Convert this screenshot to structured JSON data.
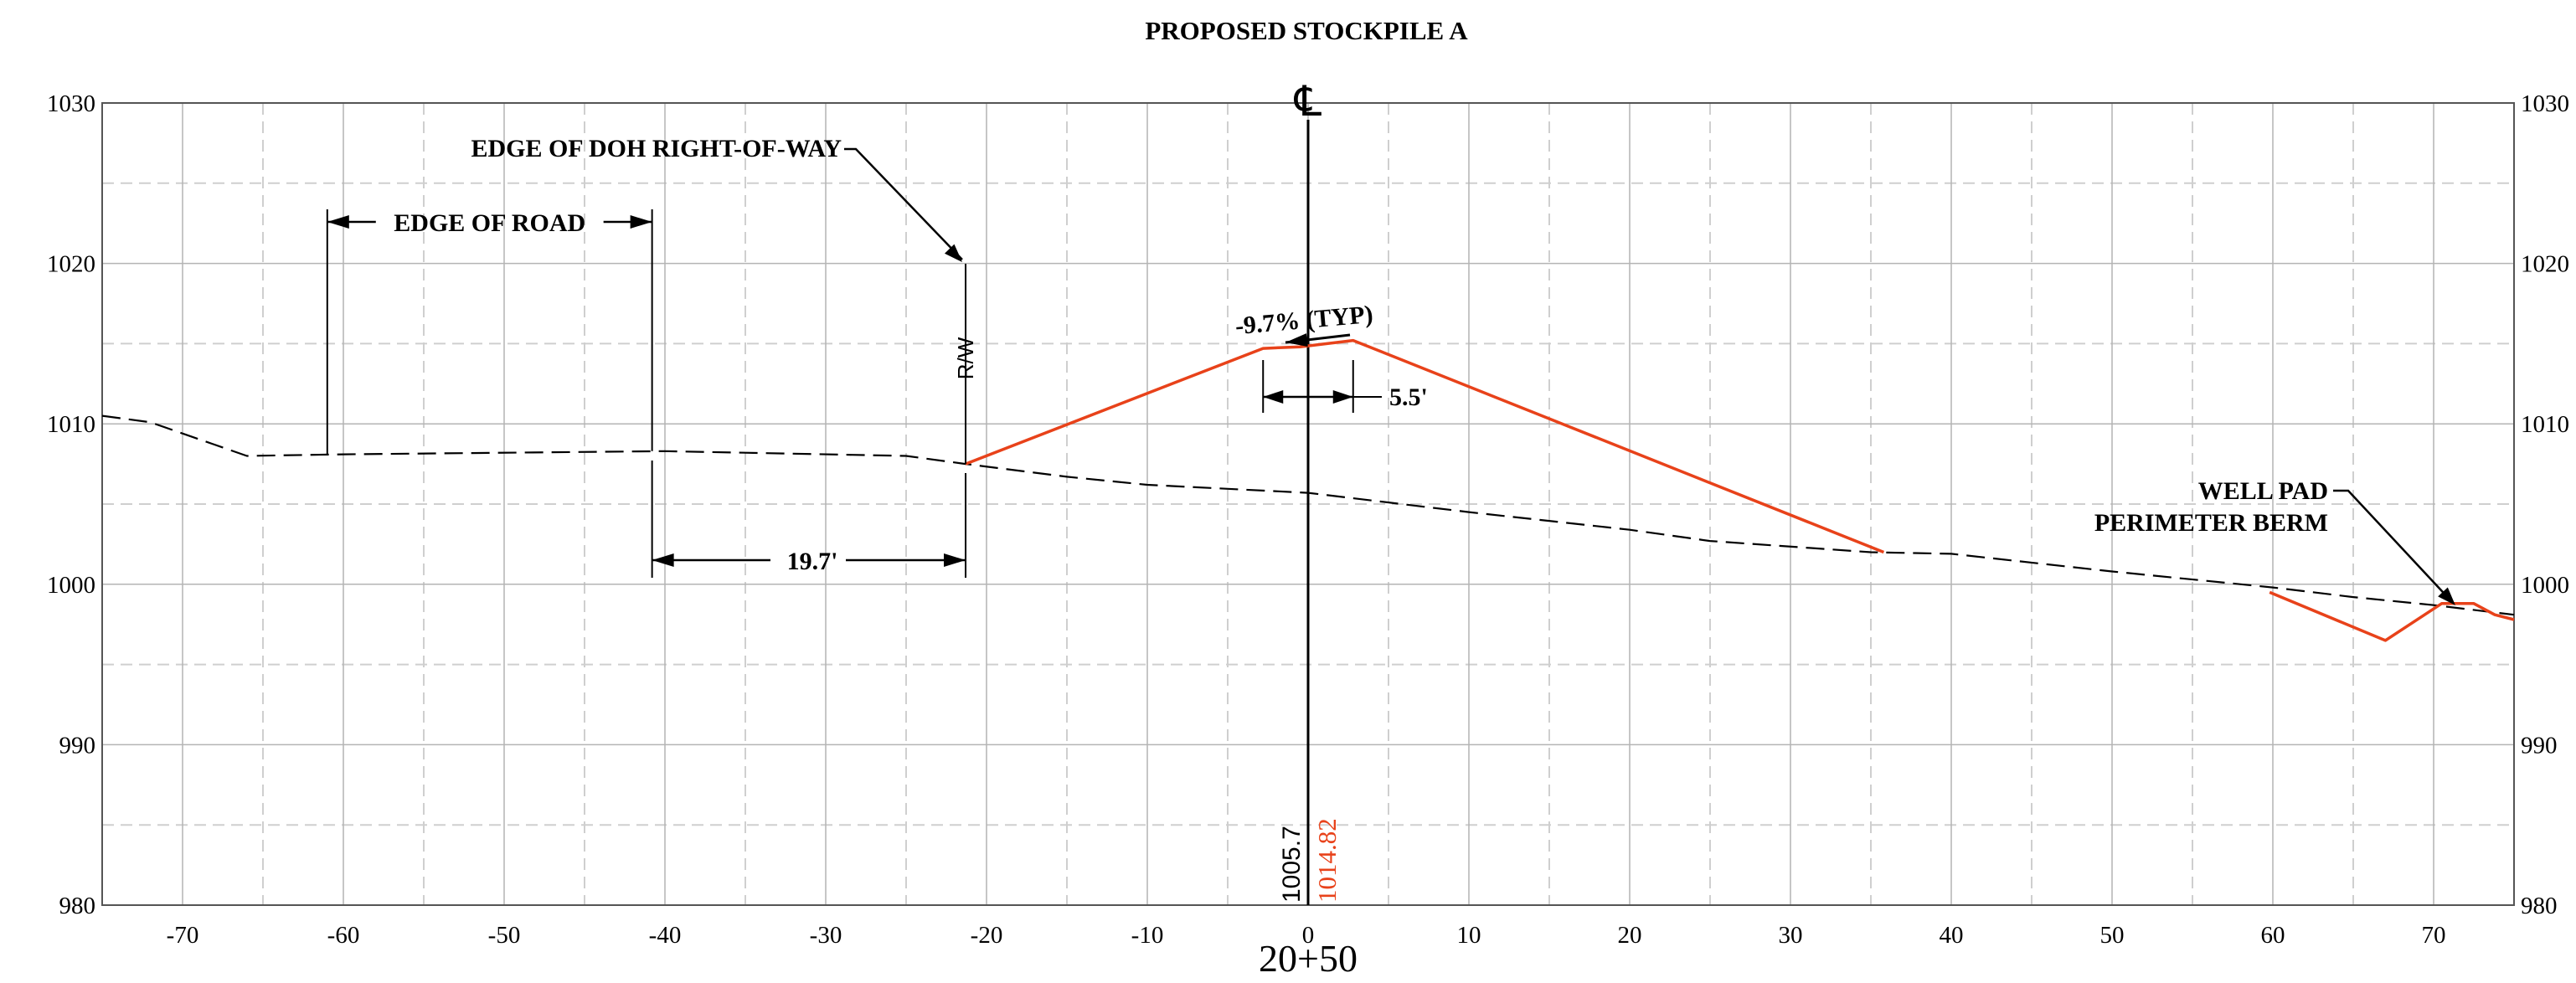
{
  "chart_data": {
    "type": "line",
    "title": "PROPOSED STOCKPILE A",
    "station_label": "20+50",
    "centerline_symbol": "℄",
    "xlim": [
      -75,
      75
    ],
    "ylim": [
      980,
      1030
    ],
    "x_ticks": [
      -70,
      -60,
      -50,
      -40,
      -30,
      -20,
      -10,
      0,
      10,
      20,
      30,
      40,
      50,
      60,
      70
    ],
    "y_ticks": [
      980,
      990,
      1000,
      1010,
      1020,
      1030
    ],
    "x_minor_grid": [
      -65,
      -55,
      -45,
      -35,
      -25,
      -15,
      -5,
      5,
      15,
      25,
      35,
      45,
      55,
      65
    ],
    "y_minor_grid": [
      985,
      995,
      1005,
      1015,
      1025
    ],
    "grid": true,
    "colors": {
      "existing": "#000000",
      "proposed": "#e8421a",
      "grid_major": "#b4b4b4",
      "grid_minor": "#cfcfcf"
    },
    "series": [
      {
        "key": "existing",
        "style": "dashed",
        "x": [
          -75,
          -72,
          -66,
          -60,
          -40,
          -25,
          -21.3,
          -15,
          -10,
          0,
          10,
          20,
          25,
          35,
          40,
          50,
          60,
          65,
          70,
          75
        ],
        "y": [
          1010.5,
          1010.1,
          1008.0,
          1008.1,
          1008.3,
          1008.0,
          1007.5,
          1006.7,
          1006.2,
          1005.7,
          1004.5,
          1003.4,
          1002.7,
          1002.0,
          1001.9,
          1000.8,
          999.8,
          999.2,
          998.7,
          998.1
        ]
      },
      {
        "key": "proposed",
        "style": "solid",
        "x": [
          -21.3,
          -2.8,
          -0.5,
          2.8,
          35.8
        ],
        "y": [
          1007.5,
          1014.7,
          1014.8,
          1015.2,
          1002.0
        ]
      },
      {
        "key": "berm",
        "style": "solid",
        "x": [
          59.8,
          67.0,
          70.5,
          72.5,
          73.8,
          75
        ],
        "y": [
          999.5,
          996.5,
          998.8,
          998.8,
          998.1,
          997.8
        ]
      }
    ],
    "annotations": {
      "row_label": "EDGE OF DOH RIGHT-OF-WAY",
      "row_marker": "R/W",
      "edge_of_road": "EDGE OF ROAD",
      "dim_19_7": "19.7'",
      "slope": "-9.7% (TYP)",
      "dim_5_5": "5.5'",
      "berm_line1": "WELL PAD",
      "berm_line2": "PERIMETER BERM",
      "elev_existing": "1005.7",
      "elev_proposed": "1014.82"
    }
  }
}
